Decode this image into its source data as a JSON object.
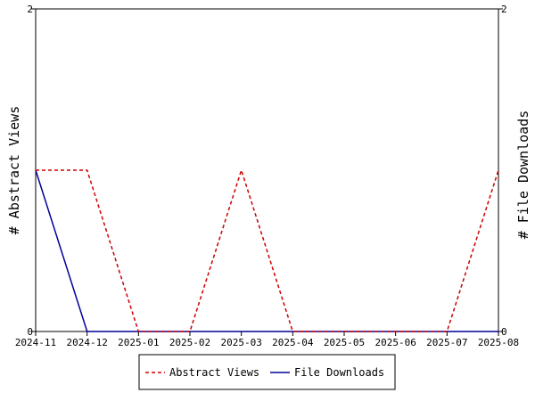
{
  "chart_data": {
    "type": "line",
    "categories": [
      "2024-11",
      "2024-12",
      "2025-01",
      "2025-02",
      "2025-03",
      "2025-04",
      "2025-05",
      "2025-06",
      "2025-07",
      "2025-08"
    ],
    "series": [
      {
        "name": "Abstract Views",
        "axis": "left",
        "color": "#cc0000",
        "dash": "dashed",
        "values": [
          1,
          1,
          0,
          0,
          1,
          0,
          0,
          0,
          0,
          1
        ]
      },
      {
        "name": "File Downloads",
        "axis": "right",
        "color": "#000099",
        "dash": "solid",
        "values": [
          1,
          0,
          0,
          0,
          0,
          0,
          0,
          0,
          0,
          0
        ]
      }
    ],
    "ylabel": "# Abstract Views",
    "y2label": "# File Downloads",
    "ylim": [
      0,
      2
    ],
    "y2lim": [
      0,
      2
    ],
    "yticks": [
      "0",
      "2"
    ],
    "y2ticks": [
      "0",
      "2"
    ],
    "grid": false,
    "legend": "bottom"
  }
}
